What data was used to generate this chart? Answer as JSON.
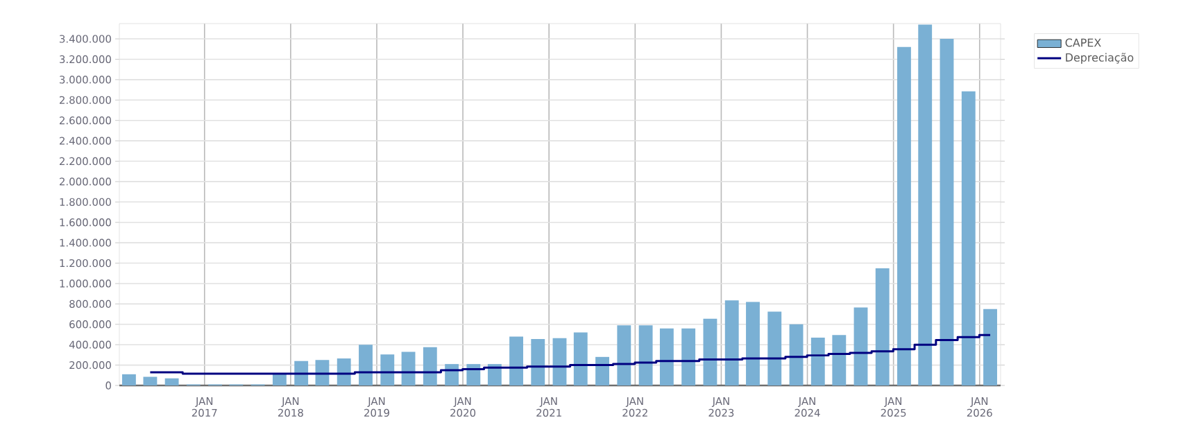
{
  "chart_data": {
    "type": "bar",
    "x": [
      "2016-02-15",
      "2016-05-15",
      "2016-08-15",
      "2016-11-15",
      "2017-02-15",
      "2017-05-15",
      "2017-08-15",
      "2017-11-15",
      "2018-02-15",
      "2018-05-15",
      "2018-08-15",
      "2018-11-15",
      "2019-02-15",
      "2019-05-15",
      "2019-08-15",
      "2019-11-15",
      "2020-02-15",
      "2020-05-15",
      "2020-08-15",
      "2020-11-15",
      "2021-02-15",
      "2021-05-15",
      "2021-08-15",
      "2021-11-15",
      "2022-02-15",
      "2022-05-15",
      "2022-08-15",
      "2022-11-15",
      "2023-02-15",
      "2023-05-15",
      "2023-08-15",
      "2023-11-15",
      "2024-02-15",
      "2024-05-15",
      "2024-08-15",
      "2024-11-15",
      "2025-02-15",
      "2025-05-15",
      "2025-08-15",
      "2025-11-15",
      "2026-02-15"
    ],
    "series": [
      {
        "name": "CAPEX",
        "color": "#7ab0d4",
        "values": [
          110000,
          85000,
          70000,
          10000,
          10000,
          10000,
          10000,
          120000,
          240000,
          250000,
          265000,
          400000,
          305000,
          330000,
          375000,
          210000,
          210000,
          210000,
          480000,
          455000,
          465000,
          520000,
          280000,
          590000,
          590000,
          560000,
          560000,
          655000,
          835000,
          820000,
          725000,
          600000,
          470000,
          495000,
          765000,
          1150000,
          3320000,
          3540000,
          3400000,
          2885000,
          750000
        ]
      },
      {
        "name": "Depreciação",
        "type": "step",
        "color": "#000080",
        "values": [
          null,
          130000,
          130000,
          115000,
          115000,
          115000,
          115000,
          115000,
          115000,
          115000,
          115000,
          130000,
          130000,
          130000,
          130000,
          150000,
          160000,
          175000,
          175000,
          185000,
          185000,
          200000,
          200000,
          210000,
          225000,
          240000,
          240000,
          255000,
          255000,
          265000,
          265000,
          280000,
          295000,
          310000,
          320000,
          335000,
          355000,
          400000,
          445000,
          475000,
          495000
        ]
      }
    ],
    "xlim": [
      "2016-01-05",
      "2026-03-31"
    ],
    "xticks": [
      {
        "value": "2017-01-01",
        "label": "JAN 2017"
      },
      {
        "value": "2018-01-01",
        "label": "JAN 2018"
      },
      {
        "value": "2019-01-01",
        "label": "JAN 2019"
      },
      {
        "value": "2020-01-01",
        "label": "JAN 2020"
      },
      {
        "value": "2021-01-01",
        "label": "JAN 2021"
      },
      {
        "value": "2022-01-01",
        "label": "JAN 2022"
      },
      {
        "value": "2023-01-01",
        "label": "JAN 2023"
      },
      {
        "value": "2024-01-01",
        "label": "JAN 2024"
      },
      {
        "value": "2025-01-01",
        "label": "JAN 2025"
      },
      {
        "value": "2026-01-01",
        "label": "JAN 2026"
      }
    ],
    "ylim": [
      0,
      3550000
    ],
    "yticks": [
      0,
      {
        "value": 200000,
        "label": "200.000"
      },
      {
        "value": 400000,
        "label": "400.000"
      },
      {
        "value": 600000,
        "label": "600.000"
      },
      {
        "value": 800000,
        "label": "800.000"
      },
      {
        "value": 1000000,
        "label": "1.000.000"
      },
      {
        "value": 1200000,
        "label": "1.200.000"
      },
      {
        "value": 1400000,
        "label": "1.400.000"
      },
      {
        "value": 1600000,
        "label": "1.600.000"
      },
      {
        "value": 1800000,
        "label": "1.800.000"
      },
      {
        "value": 2000000,
        "label": "2.000.000"
      },
      {
        "value": 2200000,
        "label": "2.200.000"
      },
      {
        "value": 2400000,
        "label": "2.400.000"
      },
      {
        "value": 2600000,
        "label": "2.600.000"
      },
      {
        "value": 2800000,
        "label": "2.800.000"
      },
      {
        "value": 3000000,
        "label": "3.000.000"
      },
      {
        "value": 3200000,
        "label": "3.200.000"
      },
      {
        "value": 3400000,
        "label": "3.400.000"
      }
    ],
    "grid": true,
    "legend": "top right"
  }
}
